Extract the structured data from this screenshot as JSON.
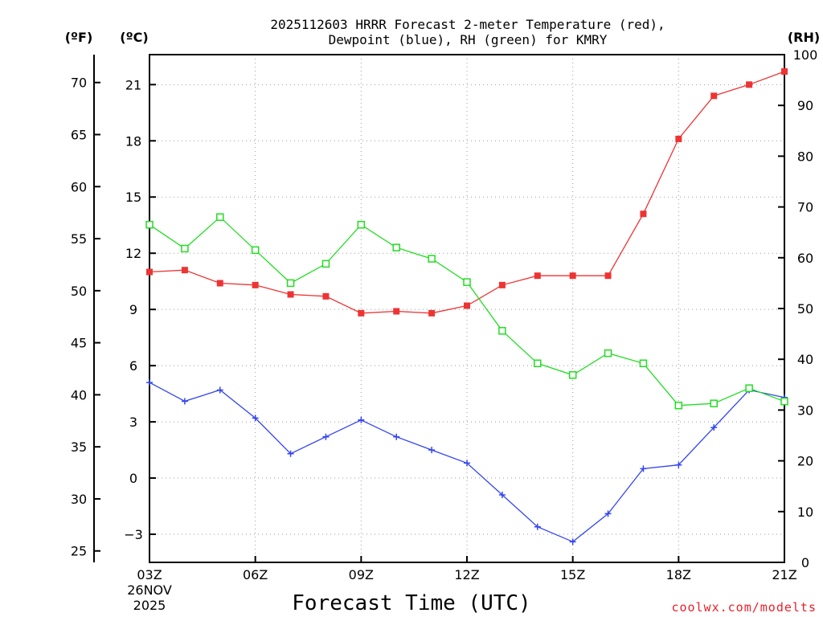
{
  "chart_data": {
    "type": "line",
    "title_lines": [
      "2025112603 HRRR Forecast 2-meter Temperature (red),",
      "Dewpoint (blue), RH (green) for KMRY"
    ],
    "xlabel": "Forecast Time (UTC)",
    "date_lines": [
      "26NOV",
      "2025"
    ],
    "credit": "coolwx.com/modelts",
    "units": {
      "fahrenheit": "(ºF)",
      "celsius": "(ºC)",
      "rh": "(RH)"
    },
    "x": [
      3,
      4,
      5,
      6,
      7,
      8,
      9,
      10,
      11,
      12,
      13,
      14,
      15,
      16,
      17,
      18,
      19,
      20,
      21
    ],
    "x_ticks": [
      {
        "hour": 3,
        "label": "03Z"
      },
      {
        "hour": 6,
        "label": "06Z"
      },
      {
        "hour": 9,
        "label": "09Z"
      },
      {
        "hour": 12,
        "label": "12Z"
      },
      {
        "hour": 15,
        "label": "15Z"
      },
      {
        "hour": 18,
        "label": "18Z"
      },
      {
        "hour": 21,
        "label": "21Z"
      }
    ],
    "xlim": [
      3,
      21
    ],
    "celsius_axis": {
      "ylim": [
        -4.5,
        22.6
      ],
      "ticks": [
        -3,
        0,
        3,
        6,
        9,
        12,
        15,
        18,
        21
      ]
    },
    "fahrenheit_axis": {
      "ticks": [
        25,
        30,
        35,
        40,
        45,
        50,
        55,
        60,
        65,
        70
      ]
    },
    "rh_axis": {
      "ylim": [
        0,
        100
      ],
      "ticks": [
        0,
        10,
        20,
        30,
        40,
        50,
        60,
        70,
        80,
        90,
        100
      ]
    },
    "series": [
      {
        "name": "Temperature",
        "units": "C",
        "color": "#ee3333",
        "marker": "filled-square",
        "values": [
          11.0,
          11.1,
          10.4,
          10.3,
          9.8,
          9.7,
          8.8,
          8.9,
          8.8,
          9.2,
          10.3,
          10.8,
          10.8,
          10.8,
          14.1,
          18.1,
          20.4,
          21.0,
          21.7
        ]
      },
      {
        "name": "Dewpoint",
        "units": "C",
        "color": "#3344ee",
        "marker": "plus",
        "values": [
          5.1,
          4.1,
          4.7,
          3.2,
          1.3,
          2.2,
          3.1,
          2.2,
          1.5,
          0.8,
          -0.9,
          -2.6,
          -3.4,
          -1.9,
          0.5,
          0.7,
          2.7,
          4.7,
          4.3
        ]
      },
      {
        "name": "RH",
        "units": "%",
        "color": "#22dd22",
        "marker": "open-square",
        "values": [
          66.5,
          61.8,
          68.0,
          61.5,
          55.0,
          58.8,
          66.5,
          62.0,
          59.8,
          55.2,
          45.6,
          39.2,
          36.9,
          41.2,
          39.2,
          30.9,
          31.3,
          34.3,
          31.7
        ]
      }
    ]
  }
}
